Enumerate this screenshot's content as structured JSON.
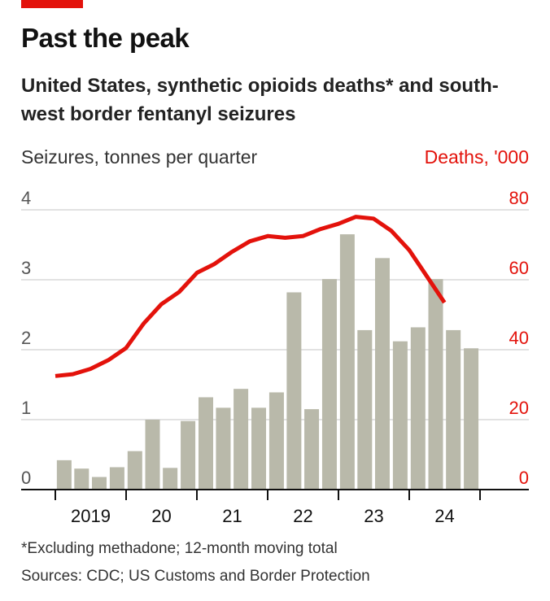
{
  "colors": {
    "accent": "#e3120b",
    "bar": "#b9b9aa",
    "grid": "#d9d9d9",
    "axis": "#111111"
  },
  "chart_data": {
    "type": "bar+line",
    "title": "Past the peak",
    "subtitle": "United States, synthetic opioids deaths* and south-west border fentanyl seizures",
    "left_axis_label": "Seizures, tonnes per quarter",
    "right_axis_label": "Deaths, '000",
    "left_ylim": [
      0,
      4
    ],
    "left_ticks": [
      "0",
      "1",
      "2",
      "3",
      "4"
    ],
    "right_ylim": [
      0,
      80
    ],
    "right_ticks": [
      "0",
      "20",
      "40",
      "60",
      "80"
    ],
    "x_labels": [
      "2019",
      "20",
      "21",
      "22",
      "23",
      "24"
    ],
    "grid": true,
    "series": [
      {
        "kind": "bar",
        "axis": "left",
        "x": [
          "2019-Q1",
          "2019-Q2",
          "2019-Q3",
          "2019-Q4",
          "2020-Q1",
          "2020-Q2",
          "2020-Q3",
          "2020-Q4",
          "2021-Q1",
          "2021-Q2",
          "2021-Q3",
          "2021-Q4",
          "2022-Q1",
          "2022-Q2",
          "2022-Q3",
          "2022-Q4",
          "2023-Q1",
          "2023-Q2",
          "2023-Q3",
          "2023-Q4",
          "2024-Q1",
          "2024-Q2",
          "2024-Q3",
          "2024-Q4"
        ],
        "values": [
          0.42,
          0.3,
          0.18,
          0.32,
          0.55,
          1.0,
          0.31,
          0.98,
          1.32,
          1.17,
          1.44,
          1.17,
          1.39,
          2.82,
          1.15,
          3.01,
          3.65,
          2.28,
          3.31,
          2.12,
          2.32,
          3.01,
          2.28,
          2.02
        ]
      },
      {
        "kind": "line",
        "axis": "right",
        "x": [
          "2019-01",
          "2019-04",
          "2019-07",
          "2019-10",
          "2020-01",
          "2020-04",
          "2020-07",
          "2020-10",
          "2021-01",
          "2021-04",
          "2021-07",
          "2021-10",
          "2022-01",
          "2022-04",
          "2022-07",
          "2022-10",
          "2023-01",
          "2023-04",
          "2023-07",
          "2023-10",
          "2024-01",
          "2024-04",
          "2024-07"
        ],
        "values": [
          32.5,
          33.0,
          34.5,
          37.0,
          40.5,
          47.5,
          53.0,
          56.5,
          62.0,
          64.5,
          68.0,
          71.0,
          72.5,
          72.0,
          72.5,
          74.5,
          76.0,
          78.0,
          77.5,
          74.0,
          68.5,
          61.0,
          53.5
        ]
      }
    ]
  },
  "notes": [
    "*Excluding methadone; 12-month moving total",
    "Sources: CDC; US Customs and Border Protection"
  ]
}
